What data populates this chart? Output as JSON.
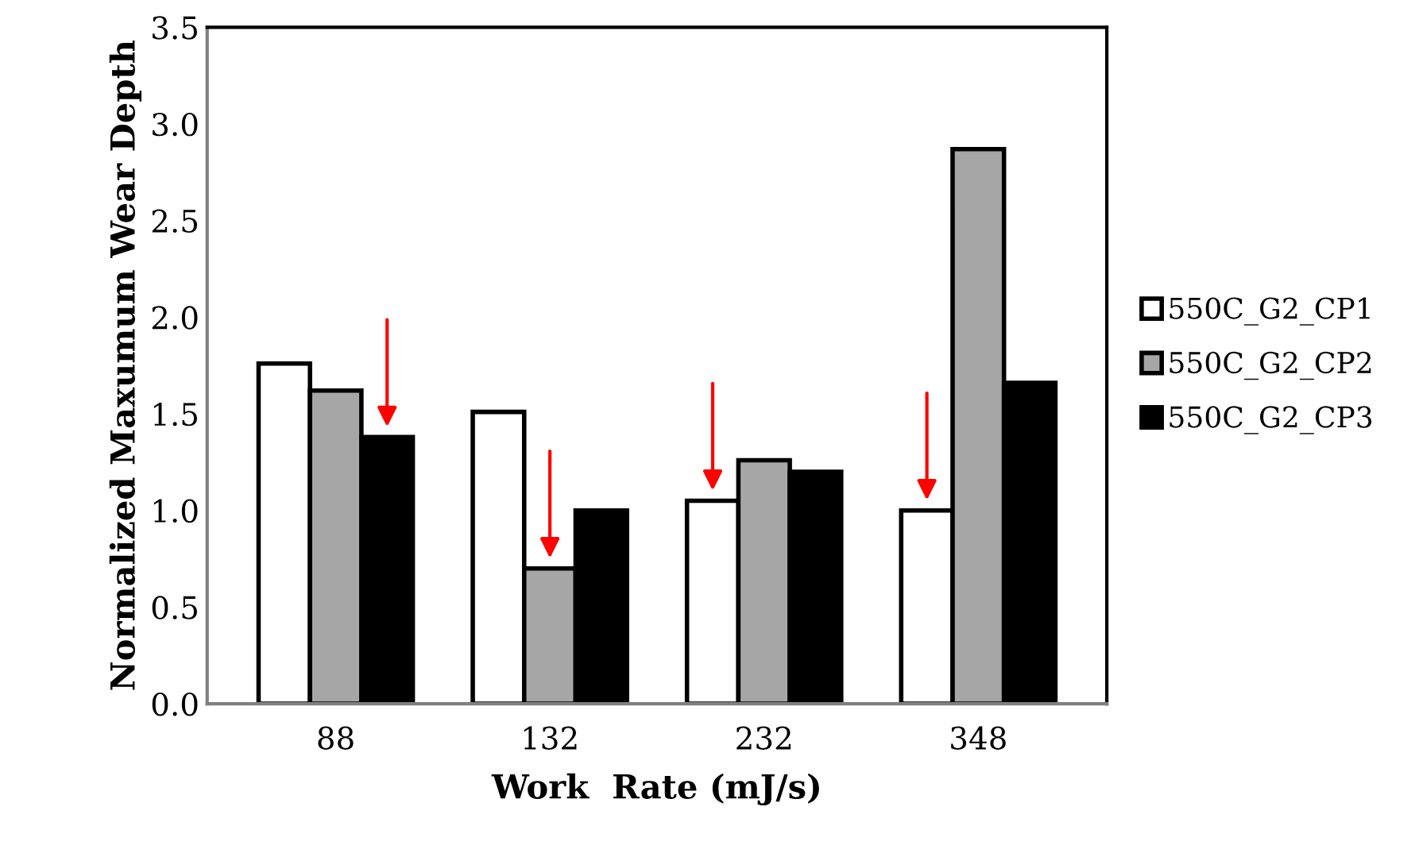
{
  "chart_data": {
    "type": "bar",
    "xlabel": "Work  Rate (mJ/s)",
    "ylabel": "Normalized Maxumum Wear Depth",
    "categories": [
      "88",
      "132",
      "232",
      "348"
    ],
    "series": [
      {
        "name": "550C_G2_CP1",
        "color": "#ffffff",
        "values": [
          1.76,
          1.51,
          1.05,
          1.0
        ]
      },
      {
        "name": "550C_G2_CP2",
        "color": "#a6a6a6",
        "values": [
          1.62,
          0.7,
          1.26,
          2.87
        ]
      },
      {
        "name": "550C_G2_CP3",
        "color": "#000000",
        "values": [
          1.38,
          1.0,
          1.2,
          1.66
        ]
      }
    ],
    "ylim": [
      0,
      3.5
    ],
    "yticks": [
      {
        "value": 0,
        "label": "0.0"
      },
      {
        "value": 0.5,
        "label": "0.5"
      },
      {
        "value": 1,
        "label": "1.0"
      },
      {
        "value": 1.5,
        "label": "1.5"
      },
      {
        "value": 2,
        "label": "2.0"
      },
      {
        "value": 2.5,
        "label": "2.5"
      },
      {
        "value": 3,
        "label": "3.0"
      },
      {
        "value": 3.5,
        "label": "3.5"
      }
    ],
    "grid": false,
    "legend": "right"
  }
}
